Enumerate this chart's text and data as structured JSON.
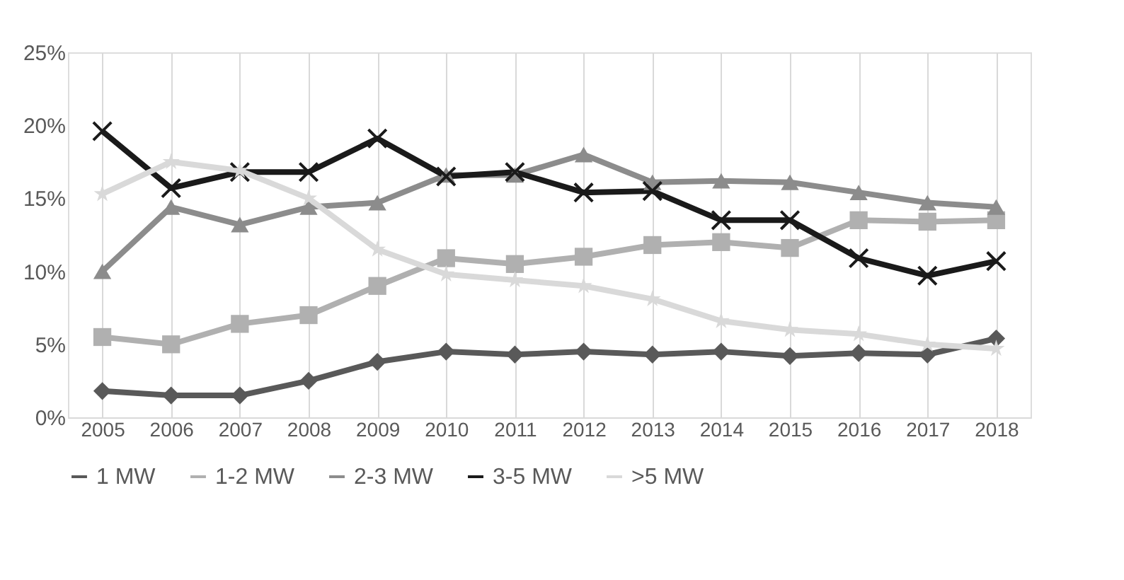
{
  "chart_data": {
    "type": "line",
    "categories": [
      "2005",
      "2006",
      "2007",
      "2008",
      "2009",
      "2010",
      "2011",
      "2012",
      "2013",
      "2014",
      "2015",
      "2016",
      "2017",
      "2018"
    ],
    "series": [
      {
        "name": "1 MW",
        "color": "#595959",
        "marker": "diamond",
        "values": [
          1.8,
          1.5,
          1.5,
          2.5,
          3.8,
          4.5,
          4.3,
          4.5,
          4.3,
          4.5,
          4.2,
          4.4,
          4.3,
          5.4
        ]
      },
      {
        "name": "1-2 MW",
        "color": "#b0b0b0",
        "marker": "square",
        "values": [
          5.5,
          5.0,
          6.4,
          7.0,
          9.0,
          10.9,
          10.5,
          11.0,
          11.8,
          12.0,
          11.6,
          13.5,
          13.4,
          13.5
        ]
      },
      {
        "name": "2-3 MW",
        "color": "#8c8c8c",
        "marker": "triangle",
        "values": [
          10.0,
          14.4,
          13.2,
          14.4,
          14.7,
          16.6,
          16.6,
          18.0,
          16.1,
          16.2,
          16.1,
          15.4,
          14.7,
          14.4
        ]
      },
      {
        "name": "3-5 MW",
        "color": "#1a1a1a",
        "marker": "cross",
        "values": [
          19.6,
          15.7,
          16.8,
          16.8,
          19.1,
          16.5,
          16.8,
          15.4,
          15.5,
          13.5,
          13.5,
          10.9,
          9.7,
          10.7
        ]
      },
      {
        "name": ">5 MW",
        "color": "#d9d9d9",
        "marker": "star",
        "values": [
          15.3,
          17.5,
          16.9,
          15.0,
          11.5,
          9.8,
          9.4,
          9.0,
          8.1,
          6.6,
          6.0,
          5.7,
          5.0,
          4.7
        ]
      }
    ],
    "ylim": [
      0,
      25
    ],
    "yticks": [
      {
        "value": 0,
        "label": "0%"
      },
      {
        "value": 5,
        "label": "5%"
      },
      {
        "value": 10,
        "label": "10%"
      },
      {
        "value": 15,
        "label": "15%"
      },
      {
        "value": 20,
        "label": "20%"
      },
      {
        "value": 25,
        "label": "25%"
      }
    ],
    "grid": "x",
    "legend": "bottom",
    "line_style": "solid"
  }
}
